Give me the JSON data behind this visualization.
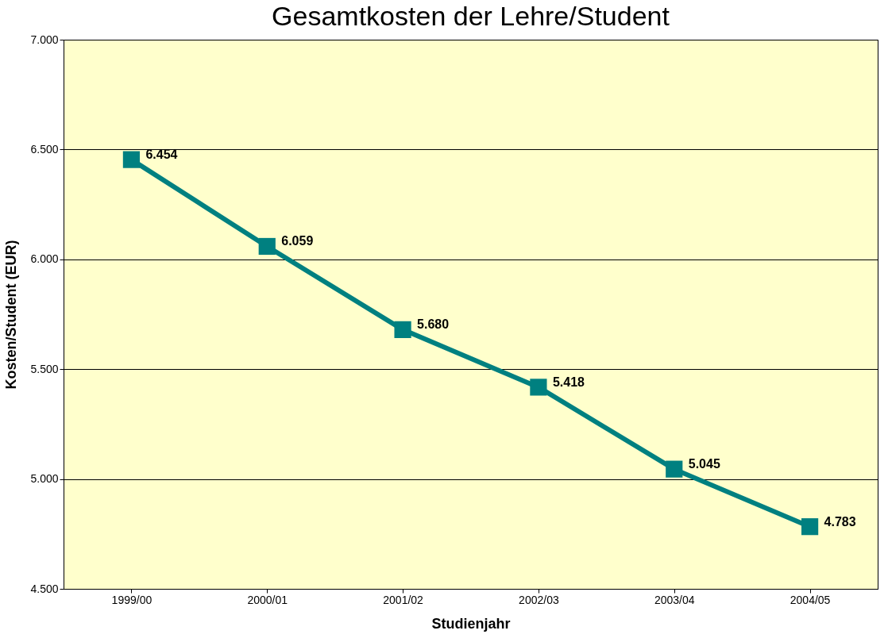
{
  "chart_data": {
    "type": "line",
    "title": "Gesamtkosten der Lehre/Student",
    "xlabel": "Studienjahr",
    "ylabel": "Kosten/Student (EUR)",
    "categories": [
      "1999/00",
      "2000/01",
      "2001/02",
      "2002/03",
      "2003/04",
      "2004/05"
    ],
    "series": [
      {
        "color": "#008080",
        "values": [
          6454,
          6059,
          5680,
          5418,
          5045,
          4783
        ],
        "value_labels": [
          "6.454",
          "6.059",
          "5.680",
          "5.418",
          "5.045",
          "4.783"
        ]
      }
    ],
    "ylim": [
      4500,
      7000
    ],
    "yticks": [
      {
        "value": 4500,
        "label": "4.500"
      },
      {
        "value": 5000,
        "label": "5.000"
      },
      {
        "value": 5500,
        "label": "5.500"
      },
      {
        "value": 6000,
        "label": "6.000"
      },
      {
        "value": 6500,
        "label": "6.500"
      },
      {
        "value": 7000,
        "label": "7.000"
      }
    ],
    "grid": "y",
    "marker": "square",
    "line_style": "solid"
  }
}
